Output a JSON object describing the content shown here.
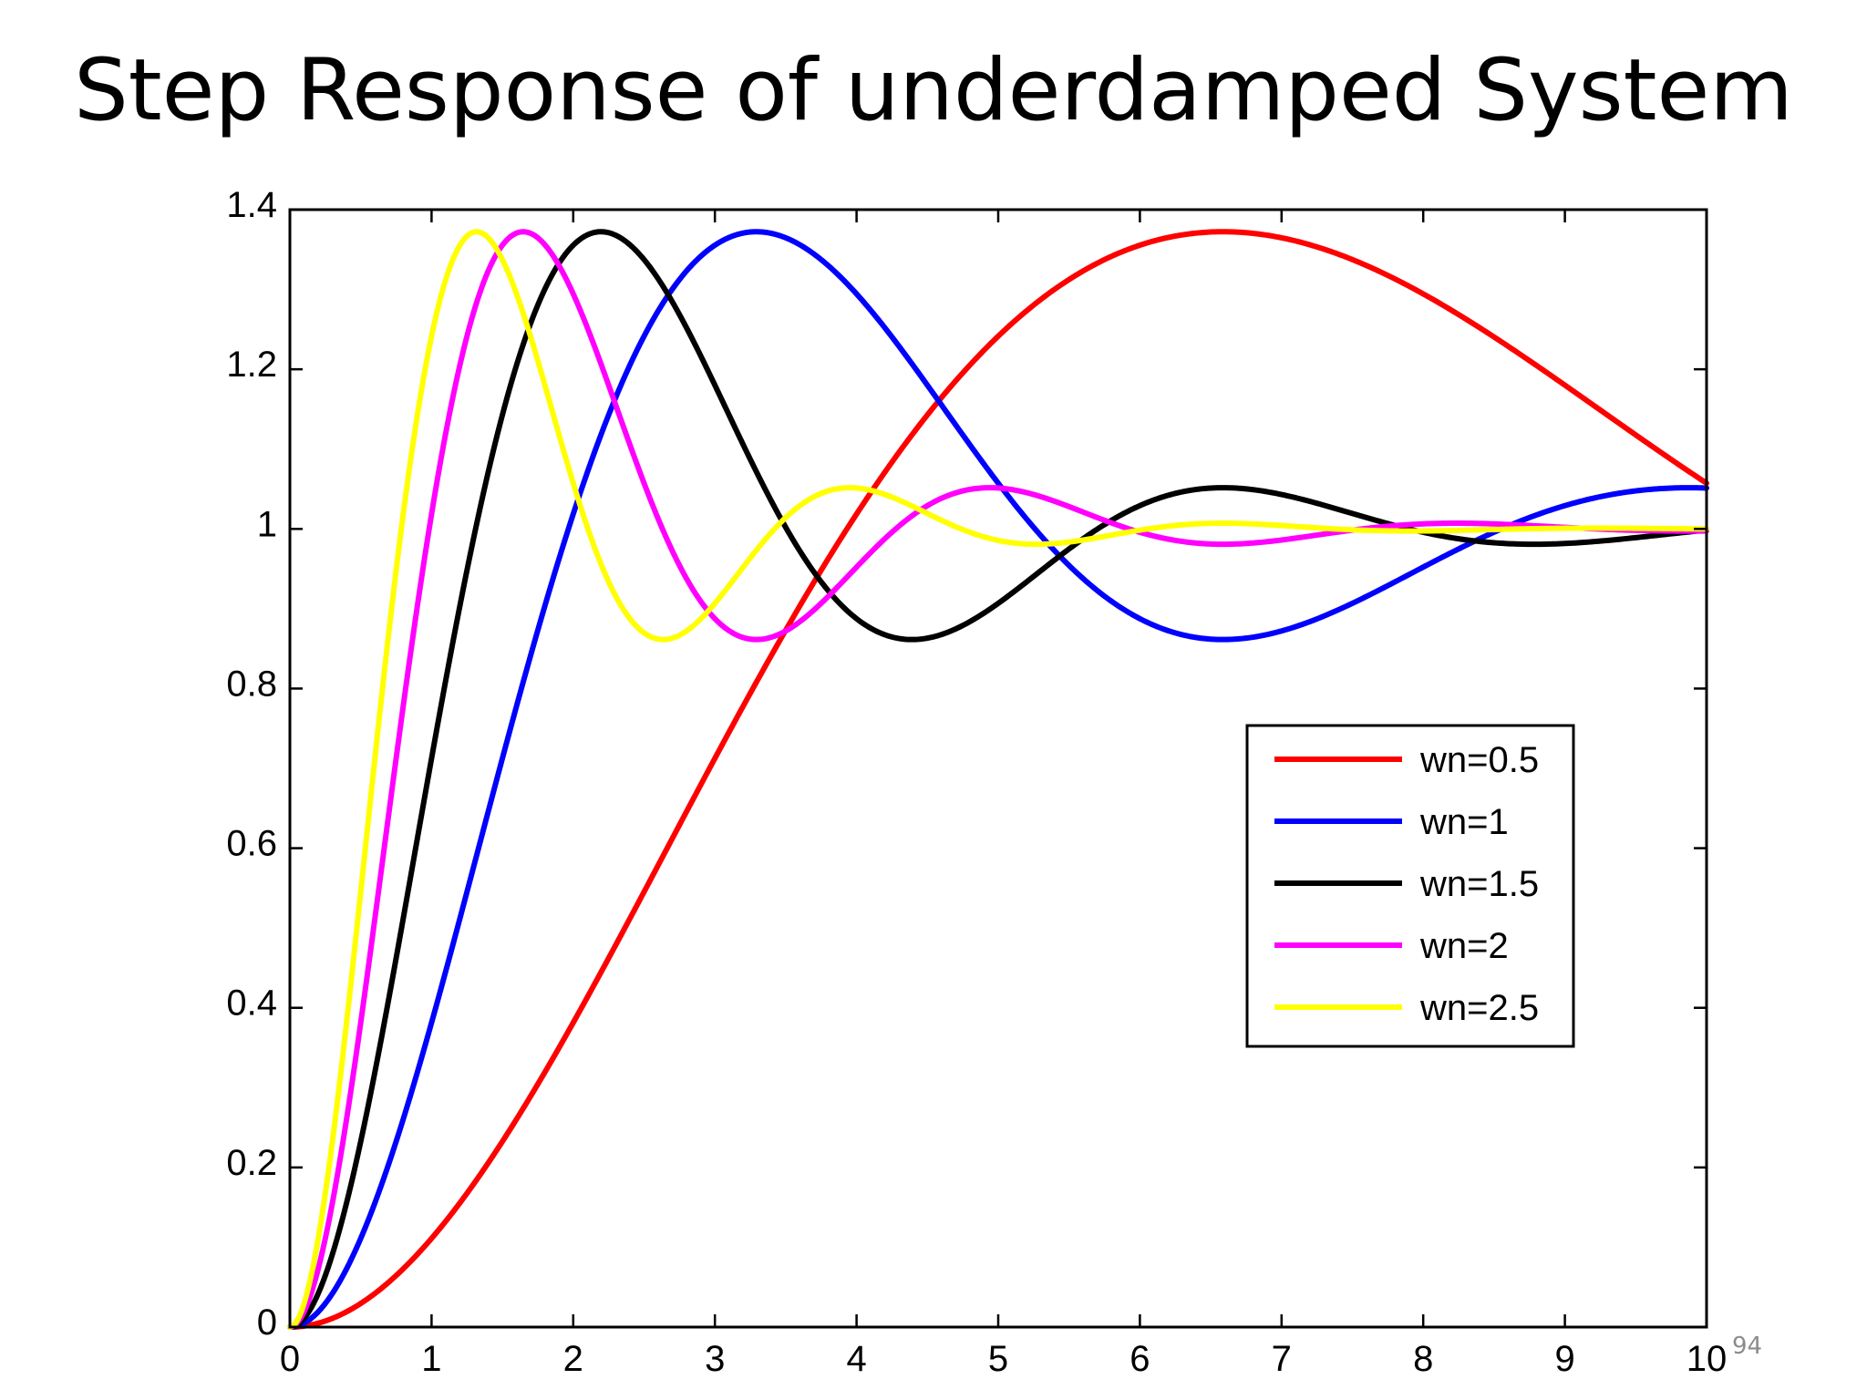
{
  "slide": {
    "title": "Step Response of underdamped System",
    "page_number": "94"
  },
  "chart_data": {
    "type": "line",
    "title": "Step Response of underdamped System",
    "xlabel": "",
    "ylabel": "",
    "xlim": [
      0,
      10
    ],
    "ylim": [
      0,
      1.4
    ],
    "x_ticks": [
      "0",
      "1",
      "2",
      "3",
      "4",
      "5",
      "6",
      "7",
      "8",
      "9",
      "10"
    ],
    "y_ticks": [
      "0",
      "0.2",
      "0.4",
      "0.6",
      "0.8",
      "1",
      "1.2",
      "1.4"
    ],
    "grid": false,
    "legend_position": "center-right",
    "damping_ratio": 0.3,
    "series": [
      {
        "name": "wn=0.5",
        "wn": 0.5,
        "color": "#ff0000"
      },
      {
        "name": "wn=1",
        "wn": 1.0,
        "color": "#0000ff"
      },
      {
        "name": "wn=1.5",
        "wn": 1.5,
        "color": "#000000"
      },
      {
        "name": "wn=2",
        "wn": 2.0,
        "color": "#ff00ff"
      },
      {
        "name": "wn=2.5",
        "wn": 2.5,
        "color": "#ffff00"
      }
    ]
  }
}
